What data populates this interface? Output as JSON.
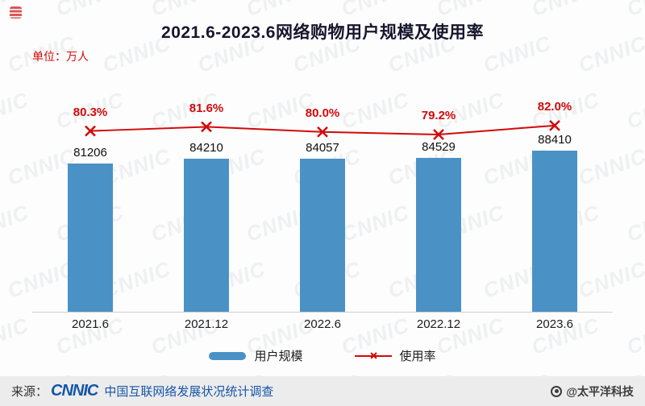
{
  "chart_data": {
    "type": "bar+line",
    "title": "2021.6-2023.6网络购物用户规模及使用率",
    "unit_label": "单位：万人",
    "categories": [
      "2021.6",
      "2021.12",
      "2022.6",
      "2022.12",
      "2023.6"
    ],
    "series": [
      {
        "name": "用户规模",
        "type": "bar",
        "color": "#4a92c6",
        "values": [
          81206,
          84210,
          84057,
          84529,
          88410
        ]
      },
      {
        "name": "使用率",
        "type": "line",
        "color": "#d20a0a",
        "values": [
          80.3,
          81.6,
          80.0,
          79.2,
          82.0
        ],
        "unit": "%"
      }
    ],
    "value_labels": [
      "81206",
      "84210",
      "84057",
      "84529",
      "88410"
    ],
    "rate_labels": [
      "80.3%",
      "81.6%",
      "80.0%",
      "79.2%",
      "82.0%"
    ],
    "ylim": [
      0,
      95000
    ],
    "gridlines": false,
    "y_axis_visible": false,
    "legend_position": "bottom"
  },
  "icons": {
    "x_marker": "+"
  },
  "footer": {
    "source_prefix": "来源：",
    "source_logo": "CNNIC",
    "source_text": "中国互联网络发展状况统计调查",
    "credit": "@太平洋科技"
  },
  "watermark_text": "CNNIC"
}
